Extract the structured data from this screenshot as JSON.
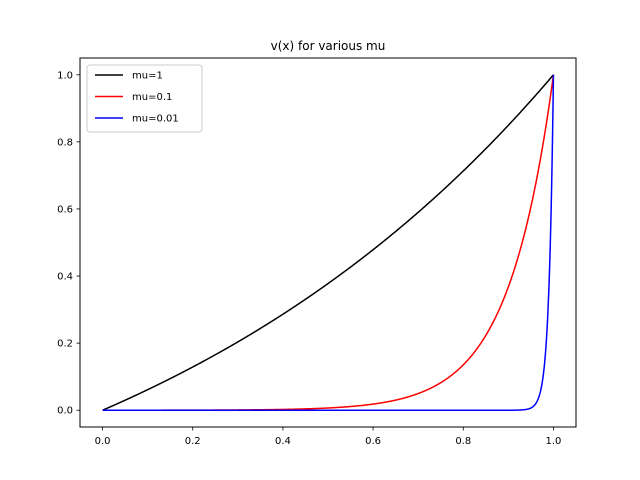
{
  "chart_data": {
    "type": "line",
    "title": "v(x) for various mu",
    "xlabel": "",
    "ylabel": "",
    "xlim": [
      -0.05,
      1.05
    ],
    "ylim": [
      -0.05,
      1.05
    ],
    "xticks": [
      "0.0",
      "0.2",
      "0.4",
      "0.6",
      "0.8",
      "1.0"
    ],
    "xtick_values": [
      0.0,
      0.2,
      0.4,
      0.6,
      0.8,
      1.0
    ],
    "yticks": [
      "0.0",
      "0.2",
      "0.4",
      "0.6",
      "0.8",
      "1.0"
    ],
    "ytick_values": [
      0.0,
      0.2,
      0.4,
      0.6,
      0.8,
      1.0
    ],
    "grid": false,
    "legend_position": "top-left",
    "series": [
      {
        "name": "mu=1",
        "mu": 1,
        "color": "#000000"
      },
      {
        "name": "mu=0.1",
        "mu": 0.1,
        "color": "#ff0000"
      },
      {
        "name": "mu=0.01",
        "mu": 0.01,
        "color": "#0000ff"
      }
    ]
  }
}
